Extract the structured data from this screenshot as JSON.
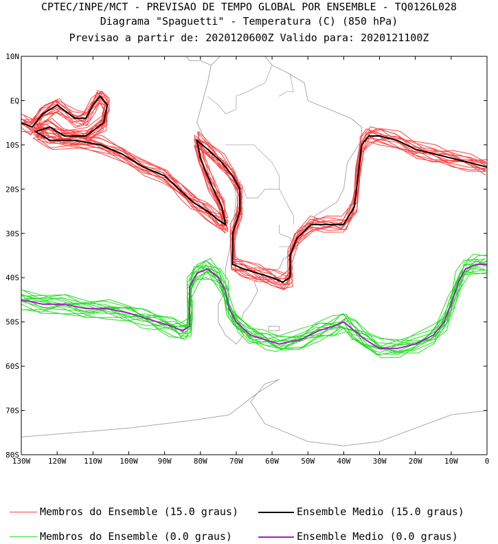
{
  "header": {
    "line1": "CPTEC/INPE/MCT - PREVISAO DE TEMPO GLOBAL POR ENSEMBLE - TQ0126L028",
    "line2": "Diagrama \"Spaguetti\" - Temperatura (C) (850 hPa)",
    "line3": "Previsao a partir de: 2020120600Z  Valido para: 2020121100Z"
  },
  "axes": {
    "lat_ticks": [
      "10N",
      "EQ",
      "10S",
      "20S",
      "30S",
      "40S",
      "50S",
      "60S",
      "70S",
      "80S"
    ],
    "lon_ticks": [
      "130W",
      "120W",
      "110W",
      "100W",
      "90W",
      "80W",
      "70W",
      "60W",
      "50W",
      "40W",
      "30W",
      "20W",
      "10W",
      "0"
    ]
  },
  "colors": {
    "member_15": "#ff4040",
    "mean_15": "#000000",
    "member_0": "#22dd22",
    "mean_0": "#a020c0",
    "coast": "#a8a8a8"
  },
  "legend": {
    "members_15": "Membros do Ensemble (15.0 graus)",
    "mean_15": "Ensemble Medio (15.0 graus)",
    "members_0": "Membros do Ensemble (0.0 graus)",
    "mean_0": "Ensemble Medio (0.0 graus)"
  },
  "isotherms": {
    "mean_15": [
      [
        -130,
        -5
      ],
      [
        -127,
        -6
      ],
      [
        -124,
        -3
      ],
      [
        -120,
        -1
      ],
      [
        -115,
        -4
      ],
      [
        -112,
        -4
      ],
      [
        -110,
        -1
      ],
      [
        -108,
        1
      ],
      [
        -106,
        -1
      ],
      [
        -107,
        -5
      ],
      [
        -112,
        -8
      ],
      [
        -118,
        -8
      ],
      [
        -122,
        -6
      ],
      [
        -126,
        -7
      ],
      [
        -122,
        -9
      ],
      [
        -115,
        -9
      ],
      [
        -108,
        -10
      ],
      [
        -102,
        -12
      ],
      [
        -96,
        -15
      ],
      [
        -90,
        -17
      ],
      [
        -86,
        -20
      ],
      [
        -82,
        -23
      ],
      [
        -78,
        -25
      ],
      [
        -75,
        -27
      ],
      [
        -73,
        -28
      ],
      [
        -74,
        -24
      ],
      [
        -77,
        -19
      ],
      [
        -80,
        -13
      ],
      [
        -81,
        -9
      ],
      [
        -78,
        -11
      ],
      [
        -74,
        -14
      ],
      [
        -71,
        -17
      ],
      [
        -69,
        -20
      ],
      [
        -69,
        -25
      ],
      [
        -71,
        -30
      ],
      [
        -71,
        -37
      ],
      [
        -68,
        -38
      ],
      [
        -64,
        -39
      ],
      [
        -60,
        -40
      ],
      [
        -57,
        -41
      ],
      [
        -55,
        -40
      ],
      [
        -55,
        -35
      ],
      [
        -53,
        -31
      ],
      [
        -49,
        -28
      ],
      [
        -45,
        -28
      ],
      [
        -40,
        -28
      ],
      [
        -37,
        -24
      ],
      [
        -36,
        -17
      ],
      [
        -35,
        -10
      ],
      [
        -33,
        -8
      ],
      [
        -30,
        -8
      ],
      [
        -25,
        -9
      ],
      [
        -20,
        -11
      ],
      [
        -15,
        -12
      ],
      [
        -10,
        -13
      ],
      [
        -5,
        -14
      ],
      [
        0,
        -15
      ]
    ],
    "mean_0": [
      [
        -130,
        -45
      ],
      [
        -124,
        -46
      ],
      [
        -118,
        -46
      ],
      [
        -112,
        -47
      ],
      [
        -106,
        -47
      ],
      [
        -100,
        -48
      ],
      [
        -96,
        -49
      ],
      [
        -92,
        -50
      ],
      [
        -88,
        -51
      ],
      [
        -85,
        -52
      ],
      [
        -83,
        -51
      ],
      [
        -83,
        -47
      ],
      [
        -83,
        -42
      ],
      [
        -81,
        -39
      ],
      [
        -78,
        -38
      ],
      [
        -75,
        -40
      ],
      [
        -73,
        -43
      ],
      [
        -72,
        -47
      ],
      [
        -70,
        -50
      ],
      [
        -66,
        -53
      ],
      [
        -62,
        -54
      ],
      [
        -58,
        -55
      ],
      [
        -52,
        -54
      ],
      [
        -47,
        -52
      ],
      [
        -43,
        -51
      ],
      [
        -40,
        -50
      ],
      [
        -37,
        -52
      ],
      [
        -34,
        -54
      ],
      [
        -30,
        -56
      ],
      [
        -25,
        -56
      ],
      [
        -20,
        -55
      ],
      [
        -15,
        -53
      ],
      [
        -12,
        -50
      ],
      [
        -10,
        -46
      ],
      [
        -8,
        -41
      ],
      [
        -6,
        -38
      ],
      [
        -3,
        -37
      ],
      [
        0,
        -37
      ]
    ]
  }
}
